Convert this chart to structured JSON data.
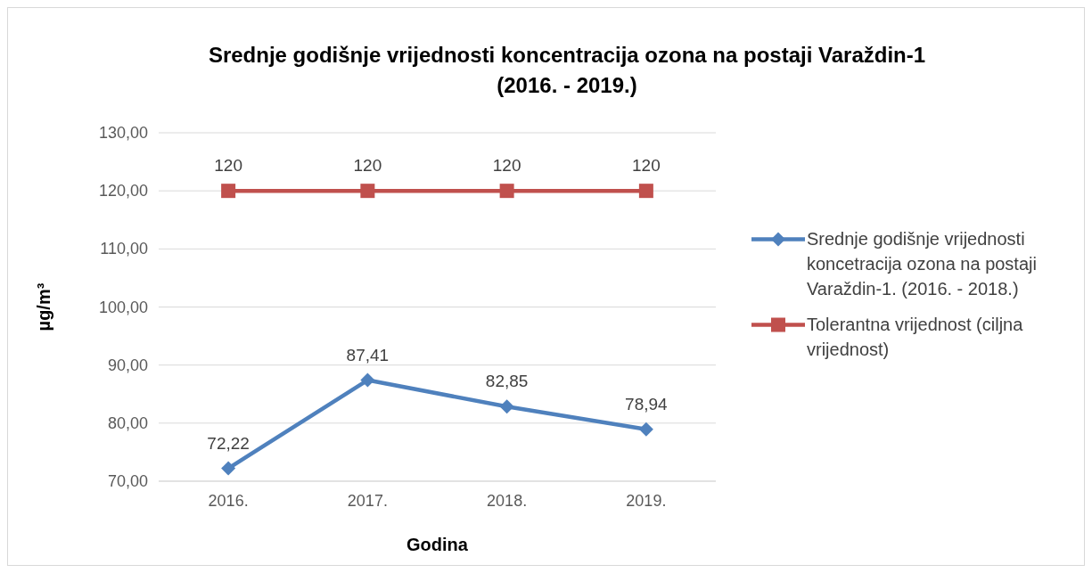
{
  "chart_data": {
    "type": "line",
    "title": "Srednje godišnje vrijednosti koncentracija ozona na postaji Varaždin-1 (2016. - 2019.)",
    "xlabel": "Godina",
    "ylabel": "µg/m³",
    "categories": [
      "2016.",
      "2017.",
      "2018.",
      "2019."
    ],
    "series": [
      {
        "name": "Srednje godišnje vrijednosti koncetracija ozona na postaji Varaždin-1. (2016. - 2018.)",
        "color": "#4f81bd",
        "marker": "diamond",
        "values": [
          72.22,
          87.41,
          82.85,
          78.94
        ],
        "value_labels": [
          "72,22",
          "87,41",
          "82,85",
          "78,94"
        ]
      },
      {
        "name": "Tolerantna vrijednost (ciljna vrijednost)",
        "color": "#c0504d",
        "marker": "square",
        "values": [
          120,
          120,
          120,
          120
        ],
        "value_labels": [
          "120",
          "120",
          "120",
          "120"
        ]
      }
    ],
    "ylim": [
      70,
      130
    ],
    "yticks": [
      {
        "value": 70,
        "label": "70,00"
      },
      {
        "value": 80,
        "label": "80,00"
      },
      {
        "value": 90,
        "label": "90,00"
      },
      {
        "value": 100,
        "label": "100,00"
      },
      {
        "value": 110,
        "label": "110,00"
      },
      {
        "value": 120,
        "label": "120,00"
      },
      {
        "value": 130,
        "label": "130,00"
      }
    ],
    "grid": "y",
    "legend": "right"
  }
}
